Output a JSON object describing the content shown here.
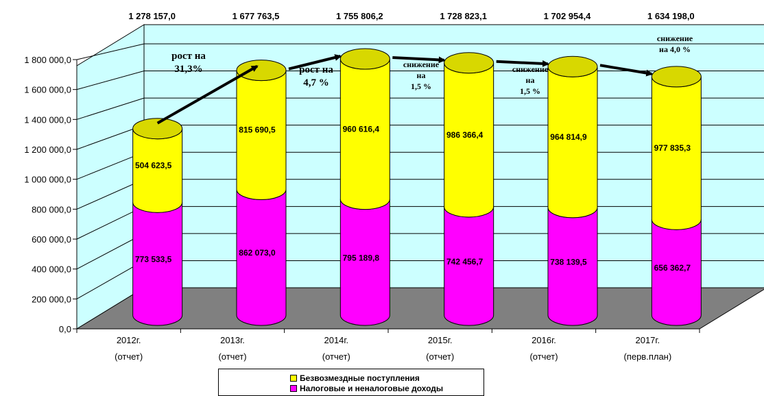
{
  "chart_data": {
    "type": "bar",
    "stacked": true,
    "three_d": true,
    "categories": [
      [
        "2012г.",
        "(отчет)"
      ],
      [
        "2013г.",
        "(отчет)"
      ],
      [
        "2014г.",
        "(отчет)"
      ],
      [
        "2015г.",
        "(отчет)"
      ],
      [
        "2016г.",
        "(отчет)"
      ],
      [
        "2017г.",
        "(перв.план)"
      ]
    ],
    "series": [
      {
        "name": "Налоговые и неналоговые доходы",
        "color": "#ff00ff",
        "values": [
          773533.5,
          862073.0,
          795189.8,
          742456.7,
          738139.5,
          656362.7
        ],
        "labels": [
          "773 533,5",
          "862 073,0",
          "795 189,8",
          "742 456,7",
          "738 139,5",
          "656 362,7"
        ]
      },
      {
        "name": "Безвозмездные поступления",
        "color": "#ffff00",
        "values": [
          504623.5,
          815690.5,
          960616.4,
          986366.4,
          964814.9,
          977835.3
        ],
        "labels": [
          "504 623,5",
          "815 690,5",
          "960 616,4",
          "986 366,4",
          "964 814,9",
          "977 835,3"
        ]
      }
    ],
    "totals": [
      1278157.0,
      1677763.5,
      1755806.2,
      1728823.1,
      1702954.4,
      1634198.0
    ],
    "total_labels": [
      "1 278 157,0",
      "1 677 763,5",
      "1 755 806,2",
      "1 728 823,1",
      "1 702 954,4",
      "1 634 198,0"
    ],
    "ylim": [
      0,
      1800000
    ],
    "yticks": [
      0,
      200000,
      400000,
      600000,
      800000,
      1000000,
      1200000,
      1400000,
      1600000,
      1800000
    ],
    "ytick_labels": [
      "0,0",
      "200 000,0",
      "400 000,0",
      "600 000,0",
      "800 000,0",
      "1 000 000,0",
      "1 200 000,0",
      "1 400 000,0",
      "1 600 000,0",
      "1 800 000,0"
    ],
    "grid": true,
    "wall_color": "#ccffff",
    "floor_color": "#808080",
    "legend_position": "bottom",
    "annotations": [
      {
        "lines": [
          "рост на",
          "31,3%"
        ]
      },
      {
        "lines": [
          "рост на",
          "4,7 %"
        ]
      },
      {
        "lines": [
          "снижение",
          "на",
          "1,5 %"
        ]
      },
      {
        "lines": [
          "снижение",
          "на",
          "1,5 %"
        ]
      },
      {
        "lines": [
          "снижение",
          "на 4,0 %"
        ]
      }
    ]
  }
}
